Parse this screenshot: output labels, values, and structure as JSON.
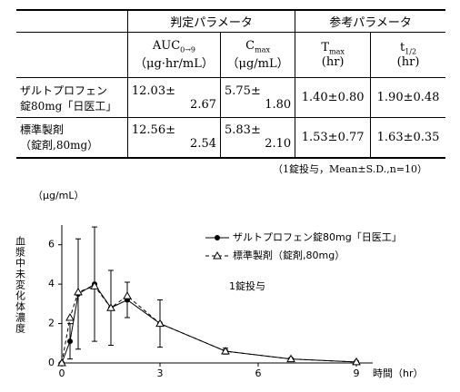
{
  "table": {
    "group_headers": [
      "判定パラメータ",
      "参考パラメータ"
    ],
    "columns": [
      {
        "name": "AUC",
        "sub": "0→9",
        "unit": "（μg·hr/mL）"
      },
      {
        "name": "C",
        "sub": "max",
        "unit": "（μg/mL）"
      },
      {
        "name": "T",
        "sub": "max",
        "unit": "(hr)"
      },
      {
        "name": "t",
        "sub": "1/2",
        "unit": "(hr)"
      }
    ],
    "rows": [
      {
        "label": [
          "ザルトプロフェン",
          "錠80mg「日医工」"
        ],
        "cells": [
          [
            "12.03±",
            "2.67"
          ],
          [
            "5.75±",
            "1.80"
          ],
          [
            "1.40±0.80"
          ],
          [
            "1.90±0.48"
          ]
        ]
      },
      {
        "label": [
          "標準製剤",
          "（錠剤,80mg）"
        ],
        "cells": [
          [
            "12.56±",
            "2.54"
          ],
          [
            "5.83±",
            "2.10"
          ],
          [
            "1.53±0.77"
          ],
          [
            "1.63±0.35"
          ]
        ]
      }
    ],
    "note": "（1錠投与，Mean±S.D.,n=10）"
  },
  "chart_data": {
    "type": "line",
    "y_unit": "（μg/mL）",
    "y_label": "血漿中未変化体濃度",
    "x_label": "時間（hr）",
    "annotation": "1錠投与",
    "x": [
      0,
      0.25,
      0.5,
      1,
      1.5,
      2,
      3,
      5,
      7,
      9
    ],
    "series": [
      {
        "name": "ザルトプロフェン錠80mg「日医工」",
        "color": "#000000",
        "marker": "circle",
        "dashed": false,
        "values": [
          0,
          1.1,
          3.5,
          4.0,
          2.8,
          3.2,
          2.0,
          0.6,
          0.2,
          0.05
        ],
        "errors": [
          0,
          0.9,
          2.8,
          2.9,
          1.9,
          0.9,
          1.2,
          0.15,
          0.05,
          0.02
        ]
      },
      {
        "name": "標準製剤（錠剤,80mg）",
        "color": "#000000",
        "marker": "triangle",
        "dashed": true,
        "values": [
          0,
          2.3,
          3.6,
          3.9,
          2.8,
          3.4,
          2.0,
          0.6,
          0.2,
          0.05
        ]
      }
    ],
    "xlim": [
      0,
      9.5
    ],
    "ylim": [
      0,
      7
    ],
    "xticks": [
      0,
      3,
      6,
      9
    ],
    "yticks": [
      0,
      2,
      4,
      6
    ]
  }
}
